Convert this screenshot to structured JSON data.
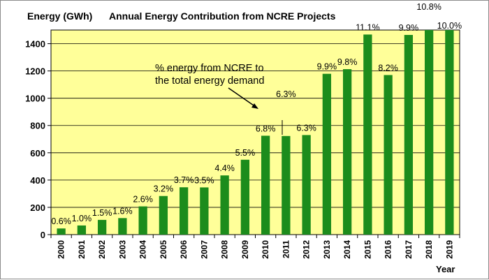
{
  "chart_data": {
    "type": "bar",
    "title": "Annual Energy Contribution from NCRE Projects",
    "ylabel": "Energy (GWh)",
    "xlabel": "Year",
    "categories": [
      "2000",
      "2001",
      "2002",
      "2003",
      "2004",
      "2005",
      "2006",
      "2007",
      "2008",
      "2009",
      "2010",
      "2011",
      "2012",
      "2013",
      "2014",
      "2015",
      "2016",
      "2017",
      "2018",
      "2019"
    ],
    "values": [
      45,
      67,
      108,
      121,
      207,
      283,
      347,
      346,
      434,
      549,
      725,
      723,
      730,
      1179,
      1213,
      1467,
      1170,
      1464,
      1500,
      1500
    ],
    "data_labels": [
      "0.6%",
      "1.0%",
      "1.5%",
      "1.6%",
      "2.6%",
      "3.2%",
      "3.7%",
      "3.5%",
      "4.4%",
      "5.5%",
      "6.8%",
      "6.3%",
      "6.3%",
      "9.9%",
      "9.8%",
      "11.1%",
      "8.2%",
      "9.9%",
      "10.8%",
      "10.0%"
    ],
    "y_ticks": [
      0,
      200,
      400,
      600,
      800,
      1000,
      1200,
      1400
    ],
    "ylim": [
      0,
      1500
    ],
    "grid": true,
    "bar_color": "#1c8c1c",
    "plot_background": "#ffff99",
    "annotation": [
      "% energy from NCRE to",
      "the total energy demand"
    ]
  }
}
